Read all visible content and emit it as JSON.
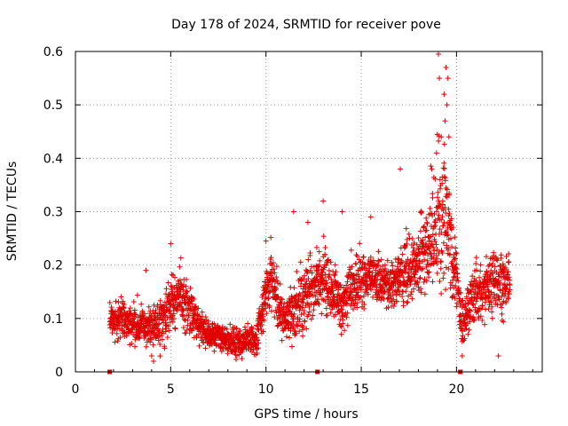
{
  "chart_data": {
    "type": "scatter",
    "title": "Day 178 of 2024, SRMTID for receiver pove",
    "xlabel": "GPS time / hours",
    "ylabel": "SRMTID / TECUs",
    "xlim": [
      0,
      24.5
    ],
    "ylim": [
      0,
      0.6
    ],
    "xticks": [
      0,
      5,
      10,
      15,
      20
    ],
    "xtick_labels": [
      "0",
      "5",
      "10",
      "15",
      "20"
    ],
    "yticks": [
      0,
      0.1,
      0.2,
      0.3,
      0.4,
      0.5,
      0.6
    ],
    "ytick_labels": [
      "0",
      "0.1",
      "0.2",
      "0.3",
      "0.4",
      "0.5",
      "0.6"
    ],
    "grid": true,
    "marker": "plus",
    "color": "#e00000",
    "series": [
      {
        "name": "SRMTID",
        "profile_hours": [
          1.8,
          2.0,
          2.5,
          3.0,
          3.5,
          4.0,
          4.5,
          5.0,
          5.5,
          6.0,
          6.5,
          7.0,
          7.5,
          8.0,
          8.5,
          9.0,
          9.5,
          10.0,
          10.3,
          10.6,
          11.0,
          11.5,
          12.0,
          12.5,
          13.0,
          13.5,
          14.0,
          14.5,
          15.0,
          15.5,
          16.0,
          16.5,
          17.0,
          17.5,
          18.0,
          18.5,
          19.0,
          19.3,
          19.6,
          19.9,
          20.1,
          20.3,
          20.6,
          21.0,
          21.5,
          22.0,
          22.5,
          22.8
        ],
        "profile_median": [
          0.1,
          0.095,
          0.105,
          0.09,
          0.09,
          0.085,
          0.09,
          0.13,
          0.14,
          0.12,
          0.085,
          0.07,
          0.07,
          0.06,
          0.055,
          0.065,
          0.06,
          0.15,
          0.18,
          0.13,
          0.095,
          0.11,
          0.14,
          0.16,
          0.18,
          0.15,
          0.12,
          0.16,
          0.17,
          0.18,
          0.17,
          0.16,
          0.18,
          0.19,
          0.2,
          0.24,
          0.27,
          0.32,
          0.26,
          0.2,
          0.14,
          0.09,
          0.12,
          0.15,
          0.16,
          0.17,
          0.16,
          0.18
        ],
        "profile_spread": [
          0.03,
          0.03,
          0.035,
          0.035,
          0.03,
          0.035,
          0.04,
          0.05,
          0.05,
          0.05,
          0.03,
          0.025,
          0.025,
          0.025,
          0.025,
          0.025,
          0.025,
          0.05,
          0.05,
          0.05,
          0.03,
          0.05,
          0.06,
          0.05,
          0.06,
          0.05,
          0.04,
          0.05,
          0.05,
          0.04,
          0.04,
          0.04,
          0.05,
          0.06,
          0.07,
          0.08,
          0.12,
          0.15,
          0.1,
          0.07,
          0.05,
          0.04,
          0.05,
          0.05,
          0.05,
          0.05,
          0.05,
          0.05
        ],
        "outliers": [
          {
            "x": 19.05,
            "y": 0.595
          },
          {
            "x": 19.1,
            "y": 0.55
          },
          {
            "x": 19.45,
            "y": 0.57
          },
          {
            "x": 19.55,
            "y": 0.55
          },
          {
            "x": 19.35,
            "y": 0.52
          },
          {
            "x": 19.5,
            "y": 0.5
          },
          {
            "x": 19.4,
            "y": 0.47
          },
          {
            "x": 19.2,
            "y": 0.44
          },
          {
            "x": 19.6,
            "y": 0.44
          },
          {
            "x": 18.95,
            "y": 0.41
          },
          {
            "x": 18.7,
            "y": 0.38
          },
          {
            "x": 17.05,
            "y": 0.38
          },
          {
            "x": 15.5,
            "y": 0.29
          },
          {
            "x": 14.0,
            "y": 0.3
          },
          {
            "x": 13.0,
            "y": 0.32
          },
          {
            "x": 11.45,
            "y": 0.3
          },
          {
            "x": 12.2,
            "y": 0.28
          },
          {
            "x": 10.0,
            "y": 0.245
          },
          {
            "x": 5.0,
            "y": 0.24
          },
          {
            "x": 3.7,
            "y": 0.19
          },
          {
            "x": 4.0,
            "y": 0.03
          },
          {
            "x": 4.1,
            "y": 0.02
          },
          {
            "x": 22.2,
            "y": 0.03
          },
          {
            "x": 20.3,
            "y": 0.03
          }
        ],
        "zero_markers": [
          1.8,
          12.7,
          20.2
        ]
      }
    ]
  }
}
